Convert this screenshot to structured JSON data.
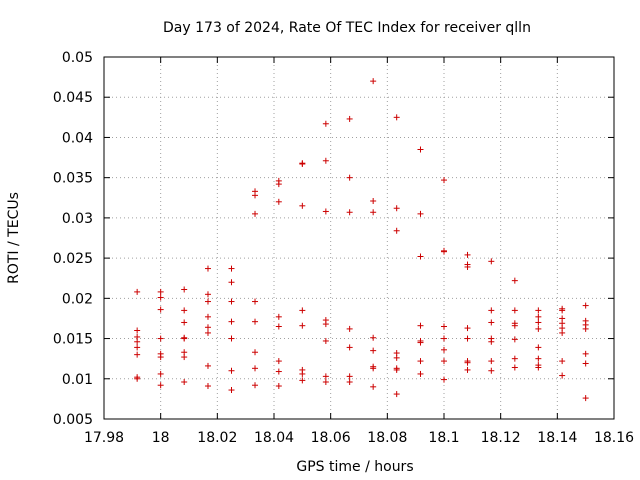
{
  "chart_data": {
    "type": "scatter",
    "title": "Day 173 of 2024, Rate Of TEC Index for receiver qlln",
    "xlabel": "GPS time / hours",
    "ylabel": "ROTI / TECUs",
    "xlim": [
      17.98,
      18.16
    ],
    "ylim": [
      0.005,
      0.05
    ],
    "grid": true,
    "marker": "+",
    "color": "#cc0000",
    "xticks": [
      17.98,
      18.0,
      18.02,
      18.04,
      18.06,
      18.08,
      18.1,
      18.12,
      18.14,
      18.16
    ],
    "xtick_labels": [
      "17.98",
      "18",
      "18.02",
      "18.04",
      "18.06",
      "18.08",
      "18.1",
      "18.12",
      "18.14",
      "18.16"
    ],
    "yticks": [
      0.005,
      0.01,
      0.015,
      0.02,
      0.025,
      0.03,
      0.035,
      0.04,
      0.045,
      0.05
    ],
    "ytick_labels": [
      "0.005",
      "0.01",
      "0.015",
      "0.02",
      "0.025",
      "0.03",
      "0.035",
      "0.04",
      "0.045",
      "0.05"
    ],
    "series": [
      {
        "name": "ROTI",
        "points": [
          [
            17.9917,
            0.0208
          ],
          [
            17.9917,
            0.016
          ],
          [
            17.9917,
            0.0152
          ],
          [
            17.9917,
            0.0146
          ],
          [
            17.9917,
            0.0139
          ],
          [
            17.9917,
            0.013
          ],
          [
            17.9917,
            0.0102
          ],
          [
            17.9917,
            0.01
          ],
          [
            18.0,
            0.0208
          ],
          [
            18.0,
            0.0201
          ],
          [
            18.0,
            0.0186
          ],
          [
            18.0,
            0.015
          ],
          [
            18.0,
            0.0131
          ],
          [
            18.0,
            0.0127
          ],
          [
            18.0,
            0.0106
          ],
          [
            18.0,
            0.0092
          ],
          [
            18.0083,
            0.0211
          ],
          [
            18.0083,
            0.0185
          ],
          [
            18.0083,
            0.017
          ],
          [
            18.0083,
            0.0151
          ],
          [
            18.0083,
            0.015
          ],
          [
            18.0083,
            0.0133
          ],
          [
            18.0083,
            0.0127
          ],
          [
            18.0083,
            0.0096
          ],
          [
            18.0167,
            0.0237
          ],
          [
            18.0167,
            0.0205
          ],
          [
            18.0167,
            0.0196
          ],
          [
            18.0167,
            0.0177
          ],
          [
            18.0167,
            0.0164
          ],
          [
            18.0167,
            0.0157
          ],
          [
            18.0167,
            0.0116
          ],
          [
            18.0167,
            0.0091
          ],
          [
            18.025,
            0.0237
          ],
          [
            18.025,
            0.022
          ],
          [
            18.025,
            0.0196
          ],
          [
            18.025,
            0.0171
          ],
          [
            18.025,
            0.015
          ],
          [
            18.025,
            0.011
          ],
          [
            18.025,
            0.0086
          ],
          [
            18.0333,
            0.0333
          ],
          [
            18.0333,
            0.0328
          ],
          [
            18.0333,
            0.0305
          ],
          [
            18.0333,
            0.0196
          ],
          [
            18.0333,
            0.0171
          ],
          [
            18.0333,
            0.0133
          ],
          [
            18.0333,
            0.0113
          ],
          [
            18.0333,
            0.0092
          ],
          [
            18.0417,
            0.0346
          ],
          [
            18.0417,
            0.0342
          ],
          [
            18.0417,
            0.032
          ],
          [
            18.0417,
            0.0177
          ],
          [
            18.0417,
            0.0165
          ],
          [
            18.0417,
            0.0122
          ],
          [
            18.0417,
            0.0109
          ],
          [
            18.0417,
            0.0091
          ],
          [
            18.05,
            0.0368
          ],
          [
            18.05,
            0.0367
          ],
          [
            18.05,
            0.0315
          ],
          [
            18.05,
            0.0185
          ],
          [
            18.05,
            0.0166
          ],
          [
            18.05,
            0.0111
          ],
          [
            18.05,
            0.0106
          ],
          [
            18.05,
            0.0098
          ],
          [
            18.0583,
            0.0417
          ],
          [
            18.0583,
            0.0371
          ],
          [
            18.0583,
            0.0308
          ],
          [
            18.0583,
            0.0173
          ],
          [
            18.0583,
            0.0168
          ],
          [
            18.0583,
            0.0147
          ],
          [
            18.0583,
            0.0103
          ],
          [
            18.0583,
            0.0096
          ],
          [
            18.0667,
            0.0423
          ],
          [
            18.0667,
            0.035
          ],
          [
            18.0667,
            0.0307
          ],
          [
            18.0667,
            0.0162
          ],
          [
            18.0667,
            0.0139
          ],
          [
            18.0667,
            0.0103
          ],
          [
            18.0667,
            0.0096
          ],
          [
            18.075,
            0.047
          ],
          [
            18.075,
            0.0321
          ],
          [
            18.075,
            0.0307
          ],
          [
            18.075,
            0.0151
          ],
          [
            18.075,
            0.0135
          ],
          [
            18.075,
            0.0115
          ],
          [
            18.075,
            0.0113
          ],
          [
            18.075,
            0.009
          ],
          [
            18.0833,
            0.0425
          ],
          [
            18.0833,
            0.0312
          ],
          [
            18.0833,
            0.0284
          ],
          [
            18.0833,
            0.0132
          ],
          [
            18.0833,
            0.0126
          ],
          [
            18.0833,
            0.0113
          ],
          [
            18.0833,
            0.0111
          ],
          [
            18.0833,
            0.0081
          ],
          [
            18.0917,
            0.0385
          ],
          [
            18.0917,
            0.0305
          ],
          [
            18.0917,
            0.0252
          ],
          [
            18.0917,
            0.0166
          ],
          [
            18.0917,
            0.0147
          ],
          [
            18.0917,
            0.0145
          ],
          [
            18.0917,
            0.0122
          ],
          [
            18.0917,
            0.0106
          ],
          [
            18.1,
            0.0347
          ],
          [
            18.1,
            0.0259
          ],
          [
            18.1,
            0.0258
          ],
          [
            18.1,
            0.0165
          ],
          [
            18.1,
            0.015
          ],
          [
            18.1,
            0.0136
          ],
          [
            18.1,
            0.0122
          ],
          [
            18.1,
            0.0099
          ],
          [
            18.1083,
            0.0254
          ],
          [
            18.1083,
            0.0242
          ],
          [
            18.1083,
            0.0239
          ],
          [
            18.1083,
            0.0163
          ],
          [
            18.1083,
            0.015
          ],
          [
            18.1083,
            0.0122
          ],
          [
            18.1083,
            0.012
          ],
          [
            18.1083,
            0.0111
          ],
          [
            18.1167,
            0.0246
          ],
          [
            18.1167,
            0.0185
          ],
          [
            18.1167,
            0.017
          ],
          [
            18.1167,
            0.015
          ],
          [
            18.1167,
            0.0146
          ],
          [
            18.1167,
            0.0122
          ],
          [
            18.1167,
            0.011
          ],
          [
            18.125,
            0.0222
          ],
          [
            18.125,
            0.0185
          ],
          [
            18.125,
            0.0169
          ],
          [
            18.125,
            0.0166
          ],
          [
            18.125,
            0.0149
          ],
          [
            18.125,
            0.0125
          ],
          [
            18.125,
            0.0114
          ],
          [
            18.1333,
            0.0185
          ],
          [
            18.1333,
            0.0177
          ],
          [
            18.1333,
            0.017
          ],
          [
            18.1333,
            0.0162
          ],
          [
            18.1333,
            0.0139
          ],
          [
            18.1333,
            0.0125
          ],
          [
            18.1333,
            0.0117
          ],
          [
            18.1333,
            0.0114
          ],
          [
            18.1417,
            0.0187
          ],
          [
            18.1417,
            0.0185
          ],
          [
            18.1417,
            0.0175
          ],
          [
            18.1417,
            0.0169
          ],
          [
            18.1417,
            0.0163
          ],
          [
            18.1417,
            0.0157
          ],
          [
            18.1417,
            0.0122
          ],
          [
            18.1417,
            0.0104
          ],
          [
            18.15,
            0.0191
          ],
          [
            18.15,
            0.0172
          ],
          [
            18.15,
            0.0167
          ],
          [
            18.15,
            0.0162
          ],
          [
            18.15,
            0.0131
          ],
          [
            18.15,
            0.0119
          ],
          [
            18.15,
            0.0076
          ]
        ]
      }
    ]
  }
}
